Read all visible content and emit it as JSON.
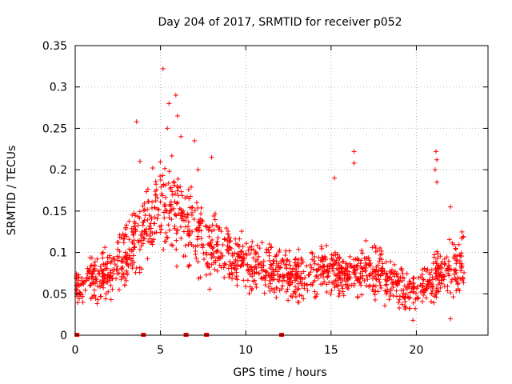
{
  "chart_data": {
    "type": "scatter",
    "title": "Day 204 of 2017, SRMTID for receiver p052",
    "xlabel": "GPS time / hours",
    "ylabel": "SRMTID / TECUs",
    "xlim": [
      0,
      24.2
    ],
    "ylim": [
      0,
      0.35
    ],
    "xticks": [
      0,
      5,
      10,
      15,
      20
    ],
    "yticks": [
      0,
      0.05,
      0.1,
      0.15,
      0.2,
      0.25,
      0.3,
      0.35
    ],
    "grid": true,
    "marker": "+",
    "color": "#ff0000",
    "zero_markers_x": [
      0.1,
      4.0,
      6.5,
      7.7,
      12.1
    ],
    "trend": [
      {
        "x": 0.0,
        "y": 0.06
      },
      {
        "x": 1.0,
        "y": 0.065
      },
      {
        "x": 2.0,
        "y": 0.075
      },
      {
        "x": 3.0,
        "y": 0.1
      },
      {
        "x": 4.0,
        "y": 0.13
      },
      {
        "x": 5.0,
        "y": 0.15
      },
      {
        "x": 5.8,
        "y": 0.16
      },
      {
        "x": 6.5,
        "y": 0.13
      },
      {
        "x": 7.5,
        "y": 0.115
      },
      {
        "x": 8.5,
        "y": 0.1
      },
      {
        "x": 10.0,
        "y": 0.09
      },
      {
        "x": 11.0,
        "y": 0.08
      },
      {
        "x": 12.0,
        "y": 0.075
      },
      {
        "x": 13.0,
        "y": 0.07
      },
      {
        "x": 14.0,
        "y": 0.075
      },
      {
        "x": 15.0,
        "y": 0.08
      },
      {
        "x": 16.0,
        "y": 0.07
      },
      {
        "x": 17.0,
        "y": 0.08
      },
      {
        "x": 18.0,
        "y": 0.075
      },
      {
        "x": 19.0,
        "y": 0.06
      },
      {
        "x": 20.0,
        "y": 0.05
      },
      {
        "x": 21.0,
        "y": 0.07
      },
      {
        "x": 22.0,
        "y": 0.08
      },
      {
        "x": 22.8,
        "y": 0.09
      }
    ],
    "notable_points": [
      {
        "x": 3.6,
        "y": 0.258
      },
      {
        "x": 5.15,
        "y": 0.322
      },
      {
        "x": 5.5,
        "y": 0.28
      },
      {
        "x": 5.9,
        "y": 0.29
      },
      {
        "x": 6.0,
        "y": 0.265
      },
      {
        "x": 5.4,
        "y": 0.25
      },
      {
        "x": 6.2,
        "y": 0.24
      },
      {
        "x": 7.0,
        "y": 0.235
      },
      {
        "x": 7.2,
        "y": 0.2
      },
      {
        "x": 8.0,
        "y": 0.215
      },
      {
        "x": 3.8,
        "y": 0.21
      },
      {
        "x": 16.35,
        "y": 0.222
      },
      {
        "x": 16.35,
        "y": 0.208
      },
      {
        "x": 15.2,
        "y": 0.19
      },
      {
        "x": 21.15,
        "y": 0.222
      },
      {
        "x": 21.2,
        "y": 0.212
      },
      {
        "x": 21.1,
        "y": 0.2
      },
      {
        "x": 21.2,
        "y": 0.185
      },
      {
        "x": 22.0,
        "y": 0.155
      },
      {
        "x": 22.0,
        "y": 0.02
      },
      {
        "x": 19.8,
        "y": 0.018
      }
    ],
    "sample_count": 1500,
    "sample_x_range": [
      0.0,
      22.8
    ]
  }
}
